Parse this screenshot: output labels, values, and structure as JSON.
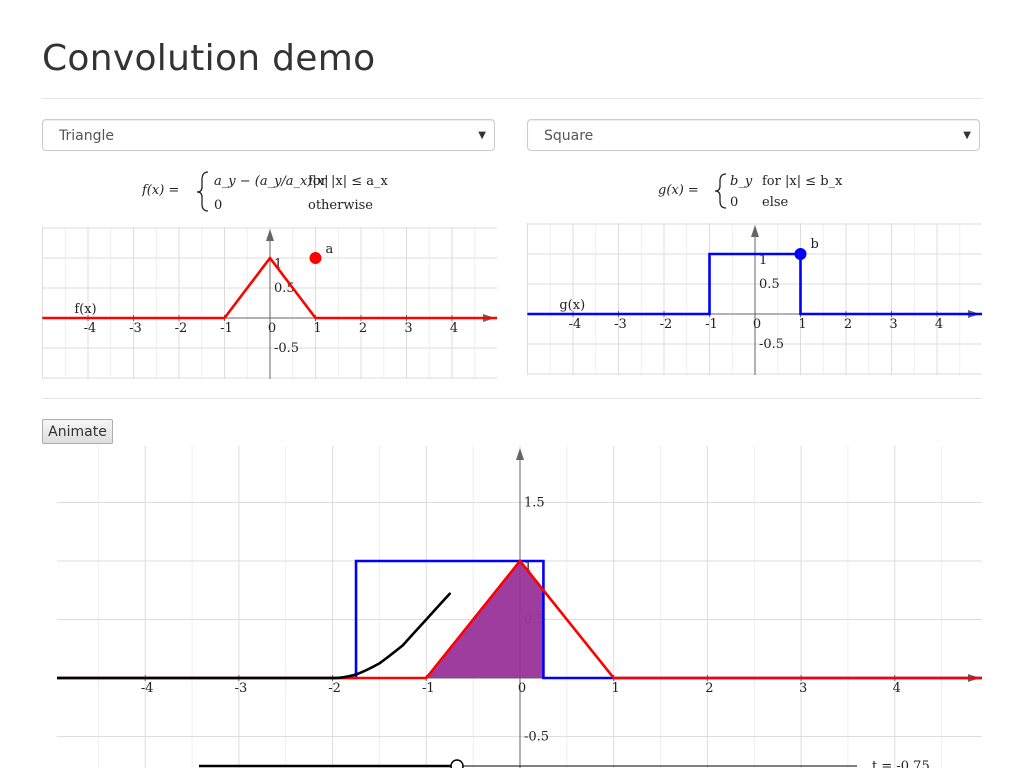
{
  "page": {
    "title": "Convolution demo"
  },
  "controls": {
    "f_select": {
      "selected": "Triangle"
    },
    "g_select": {
      "selected": "Square"
    },
    "animate_label": "Animate"
  },
  "formulas": {
    "f": {
      "lhs": "f(x) =",
      "case1_expr": "a_y − (a_y/a_x)|x|",
      "case1_cond": "for |x| ≤ a_x",
      "case2_expr": "0",
      "case2_cond": "otherwise"
    },
    "g": {
      "lhs": "g(x) =",
      "case1_expr": "b_y",
      "case1_cond": "for |x| ≤ b_x",
      "case2_expr": "0",
      "case2_cond": "else"
    }
  },
  "icons": {
    "select_caret": "caret-down-icon"
  },
  "colors": {
    "f": "#ff0000",
    "g": "#0000ff",
    "overlap": "#993399",
    "conv": "#000000"
  },
  "chart_data": [
    {
      "type": "line",
      "name_label": "f(x)",
      "point_label": "a",
      "xlim": [
        -5,
        5
      ],
      "ylim": [
        -1,
        1.5
      ],
      "x_ticks": [
        -4,
        -3,
        -2,
        -1,
        0,
        1,
        2,
        3,
        4
      ],
      "x_tick_labels": [
        "-4",
        "-3",
        "-2",
        "-1",
        "0",
        "1",
        "2",
        "3",
        "4"
      ],
      "y_tick_labels": [
        {
          "value": 1,
          "label": "1"
        },
        {
          "value": 0.5,
          "label": "0.5"
        },
        {
          "value": -0.5,
          "label": "-0.5"
        }
      ],
      "series": [
        {
          "x": [
            -5,
            -1,
            0,
            1,
            5
          ],
          "y": [
            0,
            0,
            1,
            0,
            0
          ]
        }
      ],
      "handle": {
        "x": 1,
        "y": 1
      }
    },
    {
      "type": "line",
      "name_label": "g(x)",
      "point_label": "b",
      "xlim": [
        -5,
        5
      ],
      "ylim": [
        -1,
        1.5
      ],
      "x_ticks": [
        -4,
        -3,
        -2,
        -1,
        0,
        1,
        2,
        3,
        4
      ],
      "x_tick_labels": [
        "-4",
        "-3",
        "-2",
        "-1",
        "0",
        "1",
        "2",
        "3",
        "4"
      ],
      "y_tick_labels": [
        {
          "value": 1,
          "label": "1"
        },
        {
          "value": 0.5,
          "label": "0.5"
        },
        {
          "value": -0.5,
          "label": "-0.5"
        }
      ],
      "series": [
        {
          "x": [
            -5,
            -1,
            -1,
            1,
            1,
            5
          ],
          "y": [
            0,
            0,
            1,
            1,
            0,
            0
          ]
        }
      ],
      "handle": {
        "x": 1,
        "y": 1
      }
    },
    {
      "type": "line",
      "xlim": [
        -5,
        5
      ],
      "ylim": [
        -0.75,
        2
      ],
      "x_ticks": [
        -4,
        -3,
        -2,
        -1,
        0,
        1,
        2,
        3,
        4
      ],
      "x_tick_labels": [
        "-4",
        "-3",
        "-2",
        "-1",
        "0",
        "1",
        "2",
        "3",
        "4"
      ],
      "y_tick_labels": [
        {
          "value": 1.5,
          "label": "1.5"
        },
        {
          "value": 1,
          "label": "1"
        },
        {
          "value": 0.5,
          "label": "0.5"
        },
        {
          "value": -0.5,
          "label": "-0.5"
        }
      ],
      "t": -0.75,
      "t_label": "t = -0.75",
      "series": [
        {
          "x": [
            -5,
            -1,
            0,
            1,
            5
          ],
          "y": [
            0,
            0,
            1,
            0,
            0
          ]
        },
        {
          "x": [
            -5,
            -1.75,
            -1.75,
            0.25,
            0.25,
            5
          ],
          "y": [
            0,
            0,
            1,
            1,
            0,
            0
          ]
        },
        {
          "x": [
            -5,
            -2,
            -1.75,
            -1.5,
            -1.25,
            -1,
            -0.75
          ],
          "y": [
            0,
            0,
            0.03,
            0.125,
            0.28,
            0.5,
            0.72
          ]
        }
      ],
      "overlap": {
        "x": [
          -1,
          0,
          0.25,
          0.25
        ],
        "y": [
          0,
          1,
          0.75,
          0
        ]
      }
    }
  ]
}
